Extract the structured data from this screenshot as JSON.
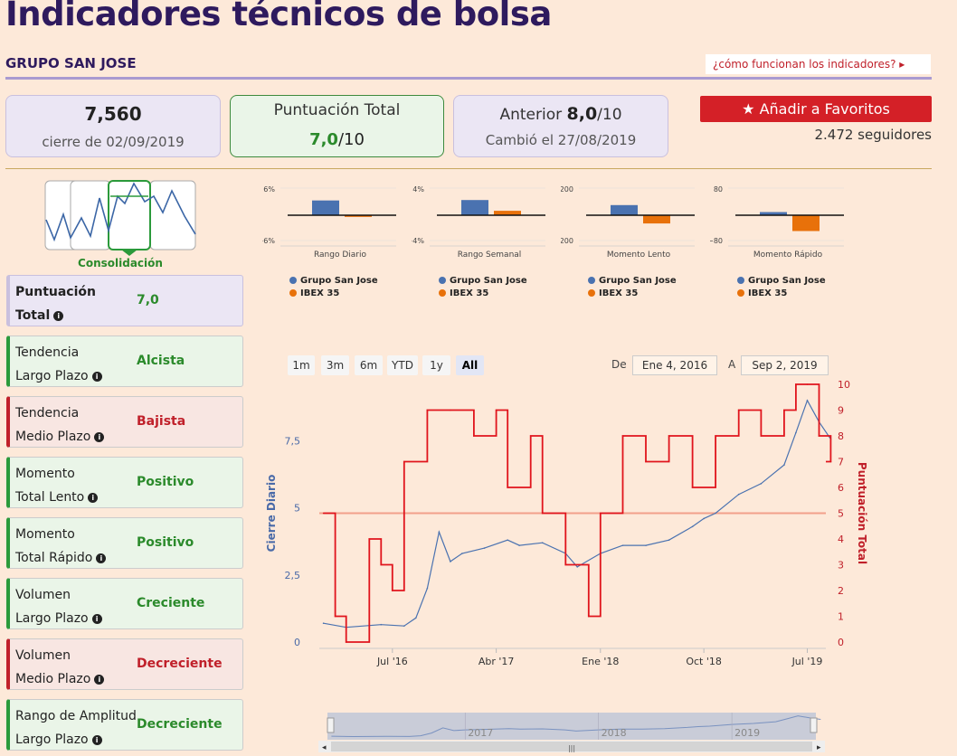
{
  "header": {
    "title": "Indicadores técnicos de bolsa",
    "company": "GRUPO SAN JOSE",
    "help_link": "¿cómo funcionan los indicadores? ▸"
  },
  "cards": {
    "price": {
      "value": "7,560",
      "caption": "cierre de 02/09/2019"
    },
    "score": {
      "label": "Puntuación Total",
      "value": "7,0",
      "suffix": "/10"
    },
    "previous": {
      "label": "Anterior",
      "value": "8,0",
      "suffix": "/10",
      "caption": "Cambió el 27/08/2019"
    }
  },
  "favorites": {
    "button_label": "Añadir a Favoritos",
    "followers": "2.472 seguidores"
  },
  "pattern": {
    "label": "Consolidación"
  },
  "indicators": [
    {
      "line1": "Puntuación",
      "line2": "Total",
      "value": "7,0",
      "status": "blue"
    },
    {
      "line1": "Tendencia",
      "line2": "Largo Plazo",
      "value": "Alcista",
      "status": "green"
    },
    {
      "line1": "Tendencia",
      "line2": "Medio Plazo",
      "value": "Bajista",
      "status": "red"
    },
    {
      "line1": "Momento",
      "line2": "Total Lento",
      "value": "Positivo",
      "status": "green"
    },
    {
      "line1": "Momento",
      "line2": "Total Rápido",
      "value": "Positivo",
      "status": "green"
    },
    {
      "line1": "Volumen",
      "line2": "Largo Plazo",
      "value": "Creciente",
      "status": "green"
    },
    {
      "line1": "Volumen",
      "line2": "Medio Plazo",
      "value": "Decreciente",
      "status": "red"
    },
    {
      "line1": "Rango de Amplitud",
      "line2": "Largo Plazo",
      "value": "Decreciente",
      "status": "green"
    }
  ],
  "legend": {
    "series1": "Grupo San Jose",
    "series2": "IBEX 35"
  },
  "colors": {
    "series1": "#4a72b0",
    "series2": "#e8710a",
    "score_line": "#e0141c",
    "accent": "#2e1a5e"
  },
  "range_selector": {
    "buttons": [
      "1m",
      "3m",
      "6m",
      "YTD",
      "1y",
      "All"
    ],
    "active": "All",
    "from_label": "De",
    "from_value": "Ene 4, 2016",
    "to_label": "A",
    "to_value": "Sep 2, 2019"
  },
  "chart_data": [
    {
      "type": "bar",
      "xlabel": "Rango Diario",
      "ylim_labels": [
        "6%",
        "−6%"
      ],
      "series": [
        {
          "name": "Grupo San Jose",
          "values": [
            3.5
          ]
        },
        {
          "name": "IBEX 35",
          "values": [
            -0.4
          ]
        }
      ]
    },
    {
      "type": "bar",
      "xlabel": "Rango Semanal",
      "ylim_labels": [
        "4%",
        "−4%"
      ],
      "series": [
        {
          "name": "Grupo San Jose",
          "values": [
            2.4
          ]
        },
        {
          "name": "IBEX 35",
          "values": [
            0.7
          ]
        }
      ]
    },
    {
      "type": "bar",
      "xlabel": "Momento Lento",
      "ylim_labels": [
        "200",
        "−200"
      ],
      "series": [
        {
          "name": "Grupo San Jose",
          "values": [
            80
          ]
        },
        {
          "name": "IBEX 35",
          "values": [
            -65
          ]
        }
      ]
    },
    {
      "type": "bar",
      "xlabel": "Momento Rápido",
      "ylim_labels": [
        "80",
        "−80"
      ],
      "series": [
        {
          "name": "Grupo San Jose",
          "values": [
            10
          ]
        },
        {
          "name": "IBEX 35",
          "values": [
            -50
          ]
        }
      ]
    },
    {
      "type": "line",
      "ylabel": "Cierre Diario",
      "y2label": "Puntuación Total",
      "x_ticks": [
        "Jul '16",
        "Abr '17",
        "Ene '18",
        "Oct '18",
        "Jul '19"
      ],
      "y_ticks": [
        "0",
        "2,5",
        "5",
        "7,5"
      ],
      "y2_ticks": [
        "0",
        "1",
        "2",
        "3",
        "4",
        "5",
        "6",
        "7",
        "8",
        "9",
        "10"
      ],
      "ylim": [
        0,
        9.6
      ],
      "y2lim": [
        0,
        10
      ],
      "x_range": [
        "2016-01-04",
        "2019-09-02"
      ],
      "threshold": 4.8,
      "series": [
        {
          "name": "Cierre Diario",
          "dates": [
            "2016-01",
            "2016-03",
            "2016-06",
            "2016-08",
            "2016-09",
            "2016-10",
            "2016-11",
            "2016-12",
            "2017-01",
            "2017-03",
            "2017-05",
            "2017-06",
            "2017-08",
            "2017-10",
            "2017-11",
            "2018-01",
            "2018-03",
            "2018-05",
            "2018-07",
            "2018-09",
            "2018-10",
            "2018-11",
            "2019-01",
            "2019-03",
            "2019-05",
            "2019-06",
            "2019-07",
            "2019-08",
            "2019-09"
          ],
          "values": [
            0.7,
            0.55,
            0.65,
            0.6,
            0.9,
            2.0,
            4.1,
            3.0,
            3.3,
            3.5,
            3.8,
            3.6,
            3.7,
            3.3,
            2.8,
            3.3,
            3.6,
            3.6,
            3.8,
            4.3,
            4.6,
            4.8,
            5.5,
            5.9,
            6.6,
            7.8,
            9.0,
            8.2,
            7.56
          ]
        },
        {
          "name": "Puntuación Total",
          "dates": [
            "2016-01",
            "2016-02",
            "2016-03",
            "2016-05",
            "2016-06",
            "2016-07",
            "2016-08",
            "2016-10",
            "2016-12",
            "2017-02",
            "2017-04",
            "2017-05",
            "2017-07",
            "2017-08",
            "2017-10",
            "2017-12",
            "2018-01",
            "2018-03",
            "2018-05",
            "2018-07",
            "2018-09",
            "2018-11",
            "2019-01",
            "2019-03",
            "2019-05",
            "2019-06",
            "2019-07",
            "2019-08",
            "2019-09"
          ],
          "values": [
            5,
            1,
            0,
            4,
            3,
            2,
            7,
            9,
            9,
            8,
            9,
            6,
            8,
            5,
            3,
            1,
            5,
            8,
            7,
            8,
            6,
            8,
            9,
            8,
            9,
            10,
            10,
            8,
            7
          ]
        }
      ]
    }
  ],
  "navigator": {
    "years": [
      "2017",
      "2018",
      "2019"
    ]
  }
}
